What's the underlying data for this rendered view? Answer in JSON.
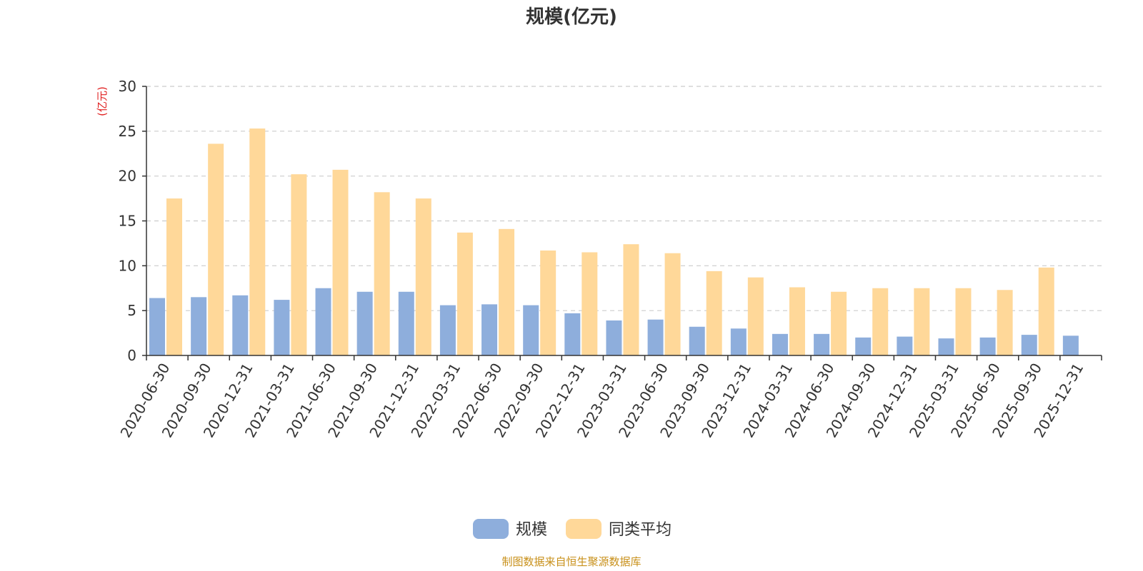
{
  "chart_data": {
    "type": "bar",
    "title": "规模(亿元)",
    "ylabel": "(亿元)",
    "ylim": [
      0,
      30
    ],
    "yticks": [
      0,
      5,
      10,
      15,
      20,
      25,
      30
    ],
    "grid": true,
    "legend_position": "bottom-center",
    "categories": [
      "2020-06-30",
      "2020-09-30",
      "2020-12-31",
      "2021-03-31",
      "2021-06-30",
      "2021-09-30",
      "2021-12-31",
      "2022-03-31",
      "2022-06-30",
      "2022-09-30",
      "2022-12-31",
      "2023-03-31",
      "2023-06-30",
      "2023-09-30",
      "2023-12-31",
      "2024-03-31",
      "2024-06-30",
      "2024-09-30",
      "2024-12-31",
      "2025-03-31",
      "2025-06-30",
      "2025-09-30",
      "2025-12-31"
    ],
    "series": [
      {
        "name": "规模",
        "color": "#8eaedc",
        "values": [
          6.4,
          6.5,
          6.7,
          6.2,
          7.5,
          7.1,
          7.1,
          5.6,
          5.7,
          5.6,
          4.7,
          3.9,
          4.0,
          3.2,
          3.0,
          2.4,
          2.4,
          2.0,
          2.1,
          1.9,
          2.0,
          2.3,
          2.2
        ]
      },
      {
        "name": "同类平均",
        "color": "#ffd899",
        "values": [
          17.5,
          23.6,
          25.3,
          20.2,
          20.7,
          18.2,
          17.5,
          13.7,
          14.1,
          11.7,
          11.5,
          12.4,
          11.4,
          9.4,
          8.7,
          7.6,
          7.1,
          7.5,
          7.5,
          7.5,
          7.3,
          9.8,
          null
        ]
      }
    ]
  },
  "source_text": "制图数据来自恒生聚源数据库"
}
